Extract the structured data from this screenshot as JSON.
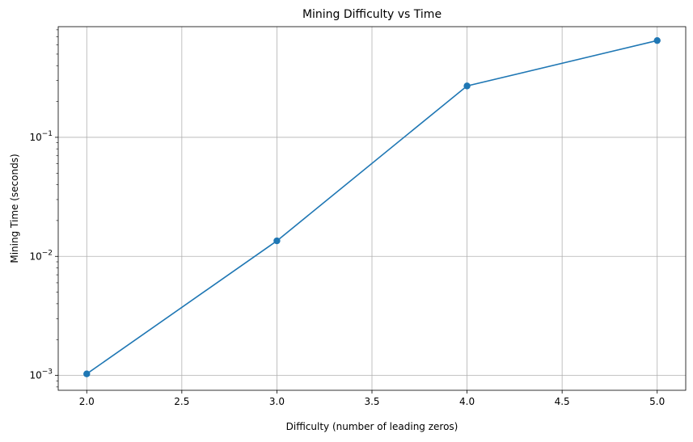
{
  "chart_data": {
    "type": "line",
    "title": "Mining Difficulty vs Time",
    "xlabel": "Difficulty (number of leading zeros)",
    "ylabel": "Mining Time (seconds)",
    "yscale": "log",
    "grid": true,
    "xlim": [
      1.85,
      5.15
    ],
    "ylim": [
      0.00075,
      0.85
    ],
    "x_ticks": [
      {
        "value": 2.0,
        "label": "2.0"
      },
      {
        "value": 2.5,
        "label": "2.5"
      },
      {
        "value": 3.0,
        "label": "3.0"
      },
      {
        "value": 3.5,
        "label": "3.5"
      },
      {
        "value": 4.0,
        "label": "4.0"
      },
      {
        "value": 4.5,
        "label": "4.5"
      },
      {
        "value": 5.0,
        "label": "5.0"
      }
    ],
    "y_ticks": [
      {
        "value": 0.001,
        "base": "10",
        "exp": "−3"
      },
      {
        "value": 0.01,
        "base": "10",
        "exp": "−2"
      },
      {
        "value": 0.1,
        "base": "10",
        "exp": "−1"
      }
    ],
    "series": [
      {
        "color": "#1f77b4",
        "marker": "circle",
        "x": [
          2,
          3,
          4,
          5
        ],
        "y": [
          0.00103,
          0.0135,
          0.27,
          0.65
        ]
      }
    ]
  }
}
